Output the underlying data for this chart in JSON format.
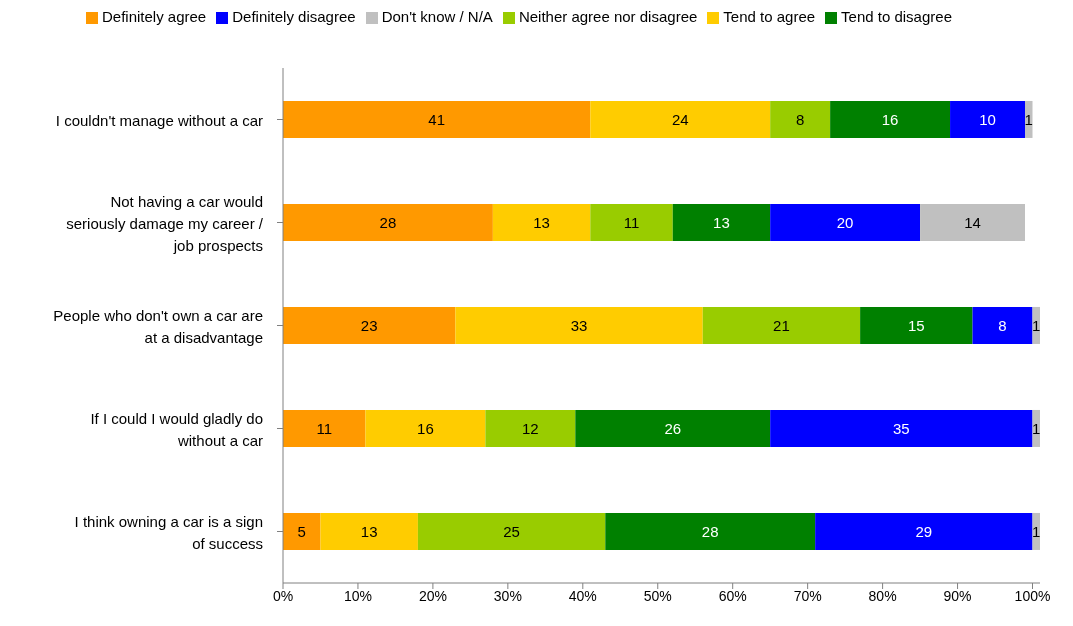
{
  "chart_data": {
    "type": "bar",
    "orientation": "horizontal",
    "stacked": true,
    "data_labels": true,
    "legend": "top",
    "grid": false,
    "categories": [
      "I couldn't manage without a car",
      "Not having a car would seriously damage my career / job prospects",
      "People who don't own a car are at a disadvantage",
      "If I could I would gladly do without a car",
      "I think owning a car is a sign of success"
    ],
    "series": [
      {
        "name": "Definitely agree",
        "color": "#ff9900",
        "values": [
          41,
          28,
          23,
          11,
          5
        ]
      },
      {
        "name": "Tend to agree",
        "color": "#ffcc00",
        "values": [
          24,
          13,
          33,
          16,
          13
        ]
      },
      {
        "name": "Neither agree nor disagree",
        "color": "#99cc00",
        "values": [
          8,
          11,
          21,
          12,
          25
        ]
      },
      {
        "name": "Tend to disagree",
        "color": "#008000",
        "values": [
          16,
          13,
          15,
          26,
          28
        ]
      },
      {
        "name": "Definitely disagree",
        "color": "#0000ff",
        "values": [
          10,
          20,
          8,
          35,
          29
        ]
      },
      {
        "name": "Don't know  / N/A",
        "color": "#c0c0c0",
        "values": [
          1,
          14,
          1,
          1,
          1
        ]
      }
    ],
    "xlim": [
      0,
      101
    ],
    "xticks": [
      {
        "value": 0,
        "label": "0%"
      },
      {
        "value": 10,
        "label": "10%"
      },
      {
        "value": 20,
        "label": "20%"
      },
      {
        "value": 30,
        "label": "30%"
      },
      {
        "value": 40,
        "label": "40%"
      },
      {
        "value": 50,
        "label": "50%"
      },
      {
        "value": 60,
        "label": "60%"
      },
      {
        "value": 70,
        "label": "70%"
      },
      {
        "value": 80,
        "label": "80%"
      },
      {
        "value": 90,
        "label": "90%"
      },
      {
        "value": 100,
        "label": "100%"
      }
    ]
  }
}
